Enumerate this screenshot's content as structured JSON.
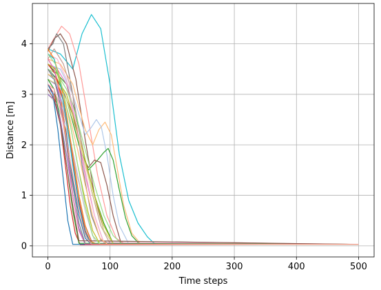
{
  "chart_data": {
    "type": "line",
    "title": "",
    "xlabel": "Time steps",
    "ylabel": "Distance [m]",
    "xlim": [
      -25,
      525
    ],
    "ylim": [
      -0.22,
      4.8
    ],
    "xticks": [
      0,
      100,
      200,
      300,
      400,
      500
    ],
    "yticks": [
      0,
      1,
      2,
      3,
      4
    ],
    "grid": true,
    "legend": "none",
    "palette": [
      "#1f77b4",
      "#ff7f0e",
      "#2ca02c",
      "#d62728",
      "#9467bd",
      "#8c564b",
      "#e377c2",
      "#7f7f7f",
      "#bcbd22",
      "#17becf",
      "#aec7e8",
      "#ffbb78",
      "#98df8a",
      "#ff9896",
      "#c5b0d5",
      "#c49c94",
      "#f7b6d2",
      "#c7c7c7",
      "#dbdb8d",
      "#9edae5"
    ],
    "series": [
      {
        "color": "#17becf",
        "x": [
          0,
          20,
          40,
          55,
          70,
          85,
          100,
          115,
          130,
          145,
          160,
          170,
          180,
          500
        ],
        "y": [
          3.9,
          3.8,
          3.5,
          4.2,
          4.58,
          4.3,
          3.2,
          1.8,
          0.9,
          0.45,
          0.18,
          0.06,
          0.03,
          0.03
        ]
      },
      {
        "color": "#ff9896",
        "x": [
          0,
          12,
          22,
          35,
          50,
          65,
          80,
          95,
          110,
          125,
          500
        ],
        "y": [
          3.9,
          4.15,
          4.35,
          4.2,
          3.6,
          2.5,
          1.4,
          0.6,
          0.15,
          0.03,
          0.03
        ]
      },
      {
        "color": "#8c564b",
        "x": [
          0,
          10,
          20,
          30,
          45,
          60,
          75,
          90,
          105,
          500
        ],
        "y": [
          3.85,
          4.1,
          4.2,
          4.0,
          3.3,
          2.1,
          1.0,
          0.3,
          0.04,
          0.03
        ]
      },
      {
        "color": "#7f7f7f",
        "x": [
          0,
          8,
          14,
          25,
          40,
          55,
          70,
          85,
          100,
          500
        ],
        "y": [
          3.9,
          4.0,
          4.2,
          4.0,
          3.0,
          1.6,
          0.6,
          0.12,
          0.03,
          0.03
        ]
      },
      {
        "color": "#ffbb78",
        "x": [
          0,
          20,
          40,
          60,
          72,
          82,
          92,
          102,
          112,
          122,
          135,
          150,
          500
        ],
        "y": [
          3.7,
          3.6,
          3.2,
          2.3,
          2.0,
          2.3,
          2.45,
          2.2,
          1.5,
          0.8,
          0.25,
          0.03,
          0.03
        ]
      },
      {
        "color": "#aec7e8",
        "x": [
          0,
          20,
          40,
          60,
          70,
          78,
          86,
          95,
          105,
          115,
          130,
          500
        ],
        "y": [
          3.6,
          3.5,
          3.0,
          2.2,
          2.35,
          2.5,
          2.35,
          1.8,
          1.0,
          0.4,
          0.04,
          0.03
        ]
      },
      {
        "color": "#2ca02c",
        "x": [
          0,
          15,
          30,
          50,
          65,
          80,
          90,
          97,
          105,
          115,
          125,
          135,
          148,
          500
        ],
        "y": [
          3.5,
          3.3,
          2.9,
          2.0,
          1.5,
          1.7,
          1.85,
          1.93,
          1.7,
          1.1,
          0.55,
          0.2,
          0.03,
          0.03
        ]
      },
      {
        "color": "#8c564b",
        "x": [
          0,
          20,
          40,
          55,
          65,
          75,
          85,
          95,
          105,
          118,
          500
        ],
        "y": [
          3.5,
          3.2,
          2.6,
          1.8,
          1.55,
          1.7,
          1.65,
          1.2,
          0.6,
          0.04,
          0.03
        ]
      },
      {
        "color": "#2ca02c",
        "x": [
          0,
          15,
          30,
          45,
          60,
          75,
          90,
          105,
          500
        ],
        "y": [
          3.6,
          3.4,
          3.2,
          2.6,
          1.7,
          1.0,
          0.45,
          0.05,
          0.03
        ]
      },
      {
        "color": "#c49c94",
        "x": [
          0,
          10,
          25,
          40,
          55,
          70,
          85,
          100,
          500
        ],
        "y": [
          3.7,
          3.9,
          3.6,
          3.0,
          2.0,
          1.1,
          0.4,
          0.04,
          0.03
        ]
      },
      {
        "color": "#1f77b4",
        "x": [
          0,
          10,
          20,
          30,
          40,
          50,
          60,
          70,
          500
        ],
        "y": [
          3.4,
          3.3,
          2.9,
          2.2,
          1.3,
          0.6,
          0.15,
          0.03,
          0.03
        ]
      },
      {
        "color": "#ff7f0e",
        "x": [
          0,
          10,
          20,
          30,
          40,
          50,
          60,
          500
        ],
        "y": [
          3.7,
          3.5,
          3.0,
          2.1,
          1.0,
          0.3,
          0.04,
          0.03
        ]
      },
      {
        "color": "#d62728",
        "x": [
          0,
          10,
          20,
          28,
          36,
          44,
          52,
          500
        ],
        "y": [
          3.2,
          3.0,
          2.4,
          1.6,
          0.8,
          0.25,
          0.02,
          0.03
        ]
      },
      {
        "color": "#9467bd",
        "x": [
          0,
          12,
          24,
          36,
          48,
          60,
          72,
          500
        ],
        "y": [
          3.3,
          3.2,
          2.8,
          2.0,
          1.1,
          0.4,
          0.04,
          0.03
        ]
      },
      {
        "color": "#e377c2",
        "x": [
          0,
          15,
          30,
          45,
          60,
          75,
          90,
          500
        ],
        "y": [
          3.6,
          3.5,
          3.2,
          2.4,
          1.4,
          0.6,
          0.06,
          0.03
        ]
      },
      {
        "color": "#bcbd22",
        "x": [
          0,
          15,
          30,
          45,
          60,
          75,
          90,
          105,
          500
        ],
        "y": [
          3.4,
          3.3,
          3.0,
          2.4,
          1.7,
          1.0,
          0.4,
          0.05,
          0.03
        ]
      },
      {
        "color": "#98df8a",
        "x": [
          0,
          15,
          30,
          45,
          60,
          75,
          90,
          105,
          120,
          500
        ],
        "y": [
          3.5,
          3.4,
          3.1,
          2.6,
          1.9,
          1.2,
          0.6,
          0.2,
          0.03,
          0.03
        ]
      },
      {
        "color": "#c5b0d5",
        "x": [
          0,
          12,
          24,
          36,
          48,
          60,
          72,
          84,
          500
        ],
        "y": [
          3.1,
          3.0,
          2.7,
          2.1,
          1.4,
          0.7,
          0.2,
          0.03,
          0.03
        ]
      },
      {
        "color": "#f7b6d2",
        "x": [
          0,
          15,
          30,
          45,
          60,
          75,
          90,
          500
        ],
        "y": [
          3.8,
          3.7,
          3.3,
          2.5,
          1.5,
          0.6,
          0.05,
          0.03
        ]
      },
      {
        "color": "#dbdb8d",
        "x": [
          0,
          15,
          30,
          45,
          60,
          75,
          90,
          105,
          500
        ],
        "y": [
          3.3,
          3.2,
          2.9,
          2.3,
          1.6,
          0.9,
          0.3,
          0.04,
          0.03
        ]
      },
      {
        "color": "#9edae5",
        "x": [
          0,
          12,
          24,
          36,
          48,
          60,
          72,
          500
        ],
        "y": [
          3.5,
          3.3,
          2.8,
          2.0,
          1.1,
          0.35,
          0.03,
          0.03
        ]
      },
      {
        "color": "#c7c7c7",
        "x": [
          0,
          15,
          30,
          45,
          60,
          75,
          500
        ],
        "y": [
          3.0,
          2.8,
          2.3,
          1.5,
          0.7,
          0.1,
          0.03
        ]
      },
      {
        "color": "#1f77b4",
        "x": [
          0,
          8,
          16,
          24,
          32,
          40,
          500
        ],
        "y": [
          3.2,
          3.0,
          2.3,
          1.4,
          0.5,
          0.03,
          0.03
        ]
      },
      {
        "color": "#ff7f0e",
        "x": [
          0,
          10,
          20,
          30,
          40,
          50,
          60,
          70,
          80,
          500
        ],
        "y": [
          3.9,
          3.7,
          3.3,
          2.6,
          1.8,
          1.0,
          0.4,
          0.08,
          0.03,
          0.03
        ]
      },
      {
        "color": "#2ca02c",
        "x": [
          0,
          10,
          20,
          30,
          40,
          50,
          500
        ],
        "y": [
          3.3,
          3.1,
          2.5,
          1.6,
          0.7,
          0.05,
          0.03
        ]
      },
      {
        "color": "#d62728",
        "x": [
          0,
          12,
          24,
          36,
          48,
          60,
          70,
          500
        ],
        "y": [
          3.6,
          3.4,
          2.9,
          2.0,
          1.0,
          0.3,
          0.03,
          0.03
        ]
      },
      {
        "color": "#9467bd",
        "x": [
          0,
          10,
          20,
          30,
          40,
          50,
          60,
          500
        ],
        "y": [
          3.0,
          2.9,
          2.5,
          1.8,
          1.0,
          0.35,
          0.03,
          0.03
        ]
      },
      {
        "color": "#e377c2",
        "x": [
          0,
          10,
          20,
          30,
          40,
          50,
          60,
          500
        ],
        "y": [
          3.7,
          3.5,
          2.9,
          2.0,
          1.0,
          0.3,
          0.03,
          0.03
        ]
      },
      {
        "color": "#17becf",
        "x": [
          0,
          10,
          20,
          30,
          40,
          50,
          60,
          70,
          500
        ],
        "y": [
          3.8,
          3.7,
          3.2,
          2.5,
          1.6,
          0.8,
          0.25,
          0.03,
          0.03
        ]
      },
      {
        "color": "#8c564b",
        "x": [
          0,
          10,
          20,
          30,
          40,
          50,
          500
        ],
        "y": [
          3.1,
          2.9,
          2.4,
          1.6,
          0.8,
          0.1,
          0.03
        ]
      },
      {
        "color": "#bcbd22",
        "x": [
          0,
          12,
          24,
          36,
          48,
          60,
          72,
          84,
          500
        ],
        "y": [
          3.6,
          3.5,
          3.1,
          2.4,
          1.6,
          0.9,
          0.3,
          0.03,
          0.03
        ]
      },
      {
        "color": "#7f7f7f",
        "x": [
          0,
          10,
          20,
          30,
          40,
          50,
          60,
          500
        ],
        "y": [
          3.5,
          3.3,
          2.8,
          2.0,
          1.2,
          0.45,
          0.04,
          0.03
        ]
      },
      {
        "color": "#ffbb78",
        "x": [
          0,
          12,
          24,
          36,
          48,
          60,
          72,
          84,
          96,
          500
        ],
        "y": [
          3.4,
          3.3,
          3.0,
          2.5,
          1.9,
          1.2,
          0.6,
          0.15,
          0.03,
          0.03
        ]
      },
      {
        "color": "#98df8a",
        "x": [
          0,
          12,
          24,
          36,
          48,
          60,
          72,
          84,
          500
        ],
        "y": [
          3.8,
          3.6,
          3.1,
          2.4,
          1.6,
          0.8,
          0.2,
          0.03,
          0.03
        ]
      },
      {
        "color": "#ff9896",
        "x": [
          0,
          10,
          20,
          30,
          40,
          50,
          60,
          70,
          500
        ],
        "y": [
          3.2,
          3.1,
          2.7,
          2.1,
          1.4,
          0.7,
          0.2,
          0.03,
          0.03
        ]
      }
    ]
  }
}
